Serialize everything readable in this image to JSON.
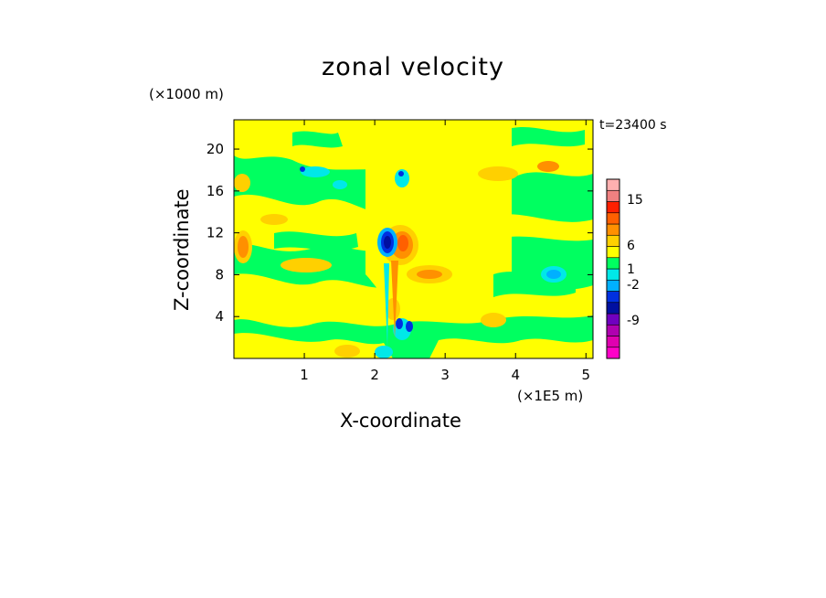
{
  "chart_data": {
    "type": "heatmap",
    "title": "zonal velocity",
    "xlabel": "X-coordinate",
    "ylabel": "Z-coordinate",
    "x_unit": "(×1E5 m)",
    "y_unit": "(×1000 m)",
    "time_label": "t=23400 s",
    "xlim": [
      0,
      5.1
    ],
    "ylim": [
      0,
      22.8
    ],
    "x_ticks": [
      "1",
      "2",
      "3",
      "4",
      "5"
    ],
    "x_tick_values": [
      1,
      2,
      3,
      4,
      5
    ],
    "y_ticks": [
      "4",
      "8",
      "12",
      "16",
      "20"
    ],
    "y_tick_values": [
      4,
      8,
      12,
      16,
      20
    ],
    "colorbar": {
      "levels": [
        {
          "color": "#ff00c8"
        },
        {
          "color": "#e000b0"
        },
        {
          "color": "#b000b0"
        },
        {
          "color": "#7000c0"
        },
        {
          "color": "#0010a0"
        },
        {
          "color": "#0030e0"
        },
        {
          "color": "#00b0ff"
        },
        {
          "color": "#00e8e8"
        },
        {
          "color": "#00ff60"
        },
        {
          "color": "#ffff00"
        },
        {
          "color": "#ffd000"
        },
        {
          "color": "#ff9000"
        },
        {
          "color": "#ff6000"
        },
        {
          "color": "#ff2000"
        },
        {
          "color": "#f08080"
        },
        {
          "color": "#ffb0b0"
        }
      ],
      "tick_labels": [
        "15",
        "6",
        "1",
        "-2",
        "-9"
      ],
      "tick_values": [
        15,
        6,
        1,
        -2,
        -9
      ]
    },
    "background_field": "mostly yellow (~0 to 1) with green bands (~-1 to 0) and orange patches (~1 to 6)",
    "features": [
      {
        "kind": "negative vortex",
        "x": 2.2,
        "z": 11.2,
        "value": -9
      },
      {
        "kind": "positive lobe",
        "x": 2.35,
        "z": 11.5,
        "value": 6
      },
      {
        "kind": "negative spots",
        "x": 2.4,
        "z": 3.0,
        "value": -6
      },
      {
        "kind": "cyan patch",
        "x": 4.5,
        "z": 8.2,
        "value": -2
      }
    ]
  }
}
